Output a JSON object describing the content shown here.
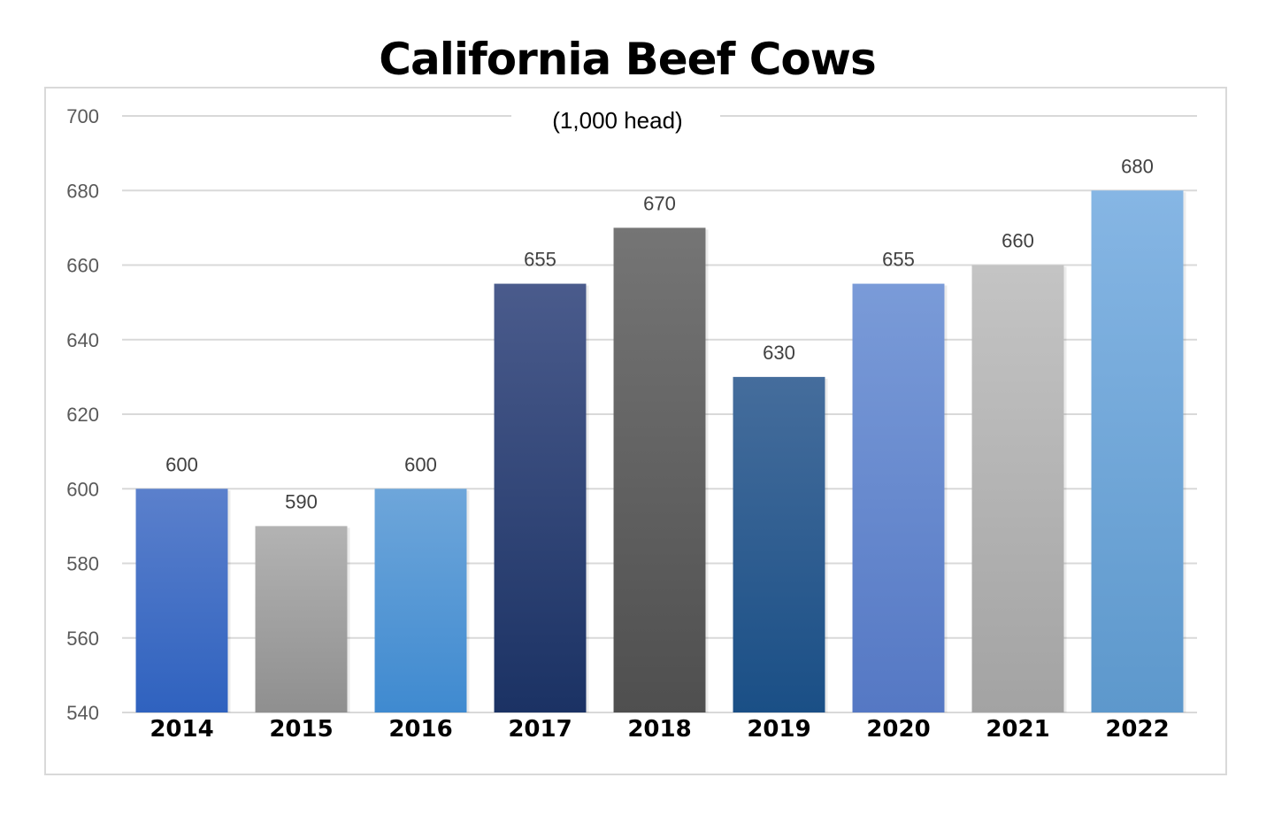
{
  "chart_data": {
    "type": "bar",
    "title": "California Beef Cows",
    "subtitle": "(1,000 head)",
    "categories": [
      "2014",
      "2015",
      "2016",
      "2017",
      "2018",
      "2019",
      "2020",
      "2021",
      "2022"
    ],
    "values": [
      600,
      590,
      600,
      655,
      670,
      630,
      655,
      660,
      680
    ],
    "ylim": [
      540,
      700
    ],
    "yticks": [
      540,
      560,
      580,
      600,
      620,
      640,
      660,
      680,
      700
    ],
    "xlabel": "",
    "ylabel": "",
    "grid": true,
    "legend": "none",
    "data_labels": true,
    "bar_colors": [
      [
        "#5b80cc",
        "#2f62bf"
      ],
      [
        "#b3b3b3",
        "#8f8f8f"
      ],
      [
        "#6ea6da",
        "#3f8ad0"
      ],
      [
        "#4a5b8c",
        "#1b3264"
      ],
      [
        "#757575",
        "#4f4f4f"
      ],
      [
        "#456d9c",
        "#1a4f86"
      ],
      [
        "#7a9bd8",
        "#5578c4"
      ],
      [
        "#c4c4c4",
        "#a3a3a3"
      ],
      [
        "#86b6e4",
        "#5d98cc"
      ]
    ],
    "gridline_color": "#d9d9d9"
  }
}
